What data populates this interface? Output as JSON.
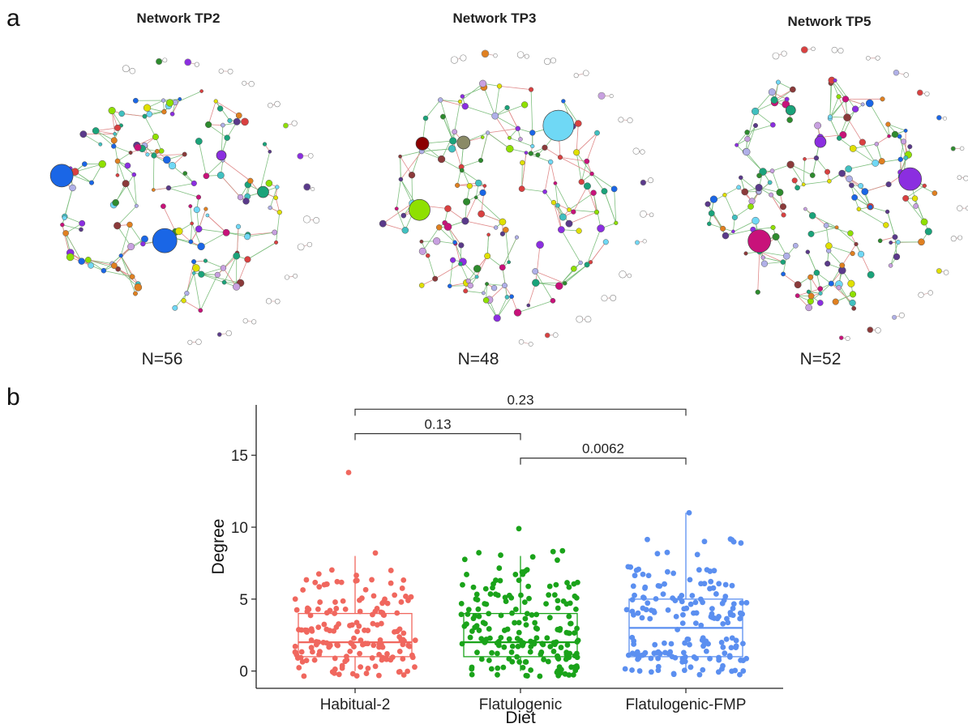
{
  "panels": {
    "a": "a",
    "b": "b"
  },
  "networks": [
    {
      "title": "Network TP2",
      "n_label": "N=56",
      "node_count": 150,
      "seed": 17,
      "big_nodes": [
        {
          "color": "#1a66e6",
          "r": 15
        },
        {
          "color": "#1a66e6",
          "r": 14
        },
        {
          "color": "#1aa37a",
          "r": 7
        },
        {
          "color": "#8b2ee0",
          "r": 6
        }
      ]
    },
    {
      "title": "Network TP3",
      "n_label": "N=48",
      "node_count": 140,
      "seed": 41,
      "big_nodes": [
        {
          "color": "#6fd8f5",
          "r": 19
        },
        {
          "color": "#8fe000",
          "r": 13
        },
        {
          "color": "#8b0000",
          "r": 8
        },
        {
          "color": "#8a8a66",
          "r": 8
        }
      ]
    },
    {
      "title": "Network TP5",
      "n_label": "N=52",
      "node_count": 165,
      "seed": 73,
      "big_nodes": [
        {
          "color": "#8b2ee0",
          "r": 14
        },
        {
          "color": "#c8127a",
          "r": 14
        },
        {
          "color": "#8b2ee0",
          "r": 7
        },
        {
          "color": "#1aa37a",
          "r": 6
        }
      ]
    }
  ],
  "node_palette": [
    "#1a66e6",
    "#1aa37a",
    "#8b2ee0",
    "#8fe000",
    "#6fd8f5",
    "#c8a0e0",
    "#2e8b2e",
    "#d94040",
    "#e08020",
    "#b0b0e8",
    "#40c0c0",
    "#8b3a3a",
    "#e0e000",
    "#5a3a8a",
    "#c8127a"
  ],
  "edge_colors": {
    "positive": "#7fbf7f",
    "negative": "#e08a8a"
  },
  "chart_data": {
    "type": "box",
    "xlabel": "Diet",
    "ylabel": "Degree",
    "categories": [
      "Habitual-2",
      "Flatulogenic",
      "Flatulogenic-FMP"
    ],
    "colors": [
      "#f0675e",
      "#1aa31a",
      "#5b8ff0"
    ],
    "ylim": [
      -1.2,
      18.5
    ],
    "yticks": [
      "0",
      "5",
      "10",
      "15"
    ],
    "boxes": [
      {
        "q1": 1,
        "median": 2,
        "q3": 4,
        "whisker_low": 0,
        "whisker_high": 8
      },
      {
        "q1": 1,
        "median": 2,
        "q3": 4,
        "whisker_low": 0,
        "whisker_high": 8
      },
      {
        "q1": 1,
        "median": 3,
        "q3": 5,
        "whisker_low": 0,
        "whisker_high": 11
      }
    ],
    "points_per_group": [
      170,
      195,
      185
    ],
    "max_points": [
      13.8,
      9.9,
      11
    ],
    "comparisons": [
      {
        "from": 0,
        "to": 1,
        "y": 16.5,
        "label": "0.13"
      },
      {
        "from": 1,
        "to": 2,
        "y": 14.8,
        "label": "0.0062"
      },
      {
        "from": 0,
        "to": 2,
        "y": 18.2,
        "label": "0.23"
      }
    ],
    "grid": false
  }
}
